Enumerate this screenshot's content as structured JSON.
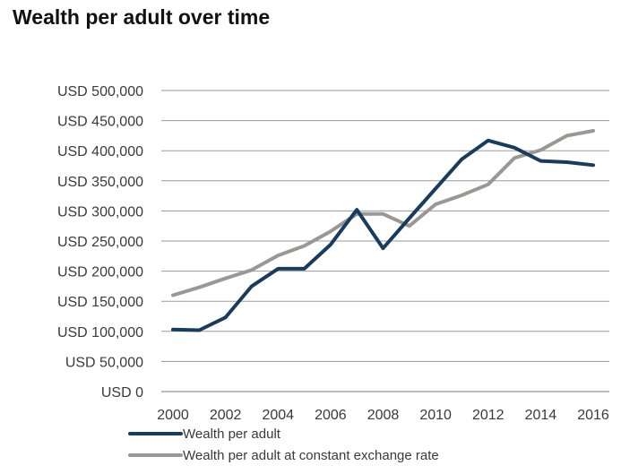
{
  "chart_data": {
    "type": "line",
    "title": "Wealth per adult over time",
    "xlabel": "",
    "ylabel": "",
    "x": [
      2000,
      2001,
      2002,
      2003,
      2004,
      2005,
      2006,
      2007,
      2008,
      2009,
      2010,
      2011,
      2012,
      2013,
      2014,
      2015,
      2016
    ],
    "x_tick_labels": [
      "2000",
      "2002",
      "2004",
      "2006",
      "2008",
      "2010",
      "2012",
      "2014",
      "2016"
    ],
    "y_tick_labels": [
      "USD 0",
      "USD 50,000",
      "USD 100,000",
      "USD 150,000",
      "USD 200,000",
      "USD 250,000",
      "USD 300,000",
      "USD 350,000",
      "USD 400,000",
      "USD 450,000",
      "USD 500,000"
    ],
    "ylim": [
      0,
      500000
    ],
    "xlim": [
      2000,
      2016
    ],
    "grid": true,
    "legend_position": "bottom",
    "series": [
      {
        "name": "Wealth per adult",
        "color": "#173c5e",
        "values": [
          103000,
          102000,
          123000,
          175000,
          204000,
          204000,
          244000,
          302000,
          238000,
          288000,
          337000,
          386000,
          417000,
          405000,
          383000,
          381000,
          376000
        ]
      },
      {
        "name": "Wealth per adult at constant exchange rate",
        "color": "#9a9795",
        "values": [
          160000,
          173000,
          188000,
          202000,
          226000,
          242000,
          266000,
          295000,
          295000,
          275000,
          311000,
          326000,
          344000,
          388000,
          401000,
          425000,
          433000
        ]
      }
    ]
  }
}
